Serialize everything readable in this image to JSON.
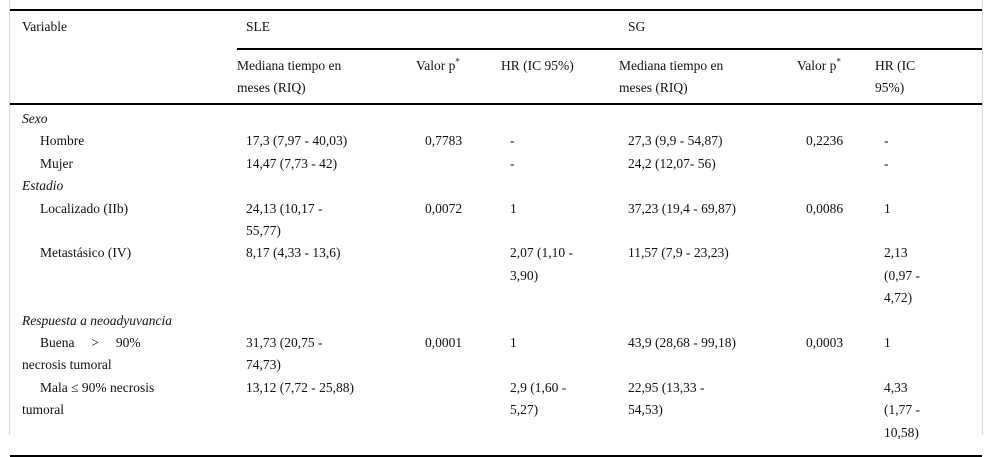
{
  "page": {
    "background": "#ffffff",
    "rule_color": "#000000",
    "edge_line_color": "#d9d9d9",
    "text_color": "#111111"
  },
  "table": {
    "col_headers": {
      "variable": "Variable",
      "group_sle": "SLE",
      "group_sg": "SG",
      "median_sle": "Mediana tiempo en\nmeses (RIQ)",
      "median_sg": "Mediana tiempo en\nmeses (RIQ)",
      "p_label": "Valor p",
      "p_sup": "*",
      "hr_sle": "HR (IC 95%)",
      "hr_sg": "HR (IC\n95%)"
    },
    "rows": [
      {
        "type": "section",
        "label": "Sexo"
      },
      {
        "type": "data",
        "label": "Hombre",
        "sle_median": "17,3 (7,97 - 40,03)",
        "sle_p": "0,7783",
        "sle_hr": "-",
        "sg_median": "27,3 (9,9 - 54,87)",
        "sg_p": "0,2236",
        "sg_hr": "-"
      },
      {
        "type": "data",
        "label": "Mujer",
        "sle_median": "14,47 (7,73 - 42)",
        "sle_p": "",
        "sle_hr": "-",
        "sg_median": "24,2 (12,07- 56)",
        "sg_p": "",
        "sg_hr": "-"
      },
      {
        "type": "section",
        "label": "Estadio"
      },
      {
        "type": "data",
        "label": "Localizado (IIb)",
        "sle_median": "24,13 (10,17 -\n55,77)",
        "sle_p": "0,0072",
        "sle_hr": "1",
        "sg_median": "37,23 (19,4 - 69,87)",
        "sg_p": "0,0086",
        "sg_hr": "1"
      },
      {
        "type": "data",
        "label": "Metastásico (IV)",
        "sle_median": "8,17 (4,33 - 13,6)",
        "sle_p": "",
        "sle_hr": "2,07 (1,10 -\n3,90)",
        "sg_median": "11,57 (7,9 - 23,23)",
        "sg_p": "",
        "sg_hr": "2,13\n(0,97 -\n4,72)"
      },
      {
        "type": "section",
        "label": "Respuesta a neoadyuvancia"
      },
      {
        "type": "data",
        "label": "Buena     >     90%\nnecrosis tumoral",
        "sle_median": "31,73 (20,75 -\n74,73)",
        "sle_p": "0,0001",
        "sle_hr": "1",
        "sg_median": "43,9 (28,68 - 99,18)",
        "sg_p": "0,0003",
        "sg_hr": "1"
      },
      {
        "type": "data",
        "label": "Mala ≤ 90% necrosis\ntumoral",
        "sle_median": "13,12 (7,72 - 25,88)",
        "sle_p": "",
        "sle_hr": "2,9 (1,60 -\n5,27)",
        "sg_median": "22,95 (13,33 -\n54,53)",
        "sg_p": "",
        "sg_hr": "4,33\n(1,77 -\n10,58)"
      }
    ]
  }
}
